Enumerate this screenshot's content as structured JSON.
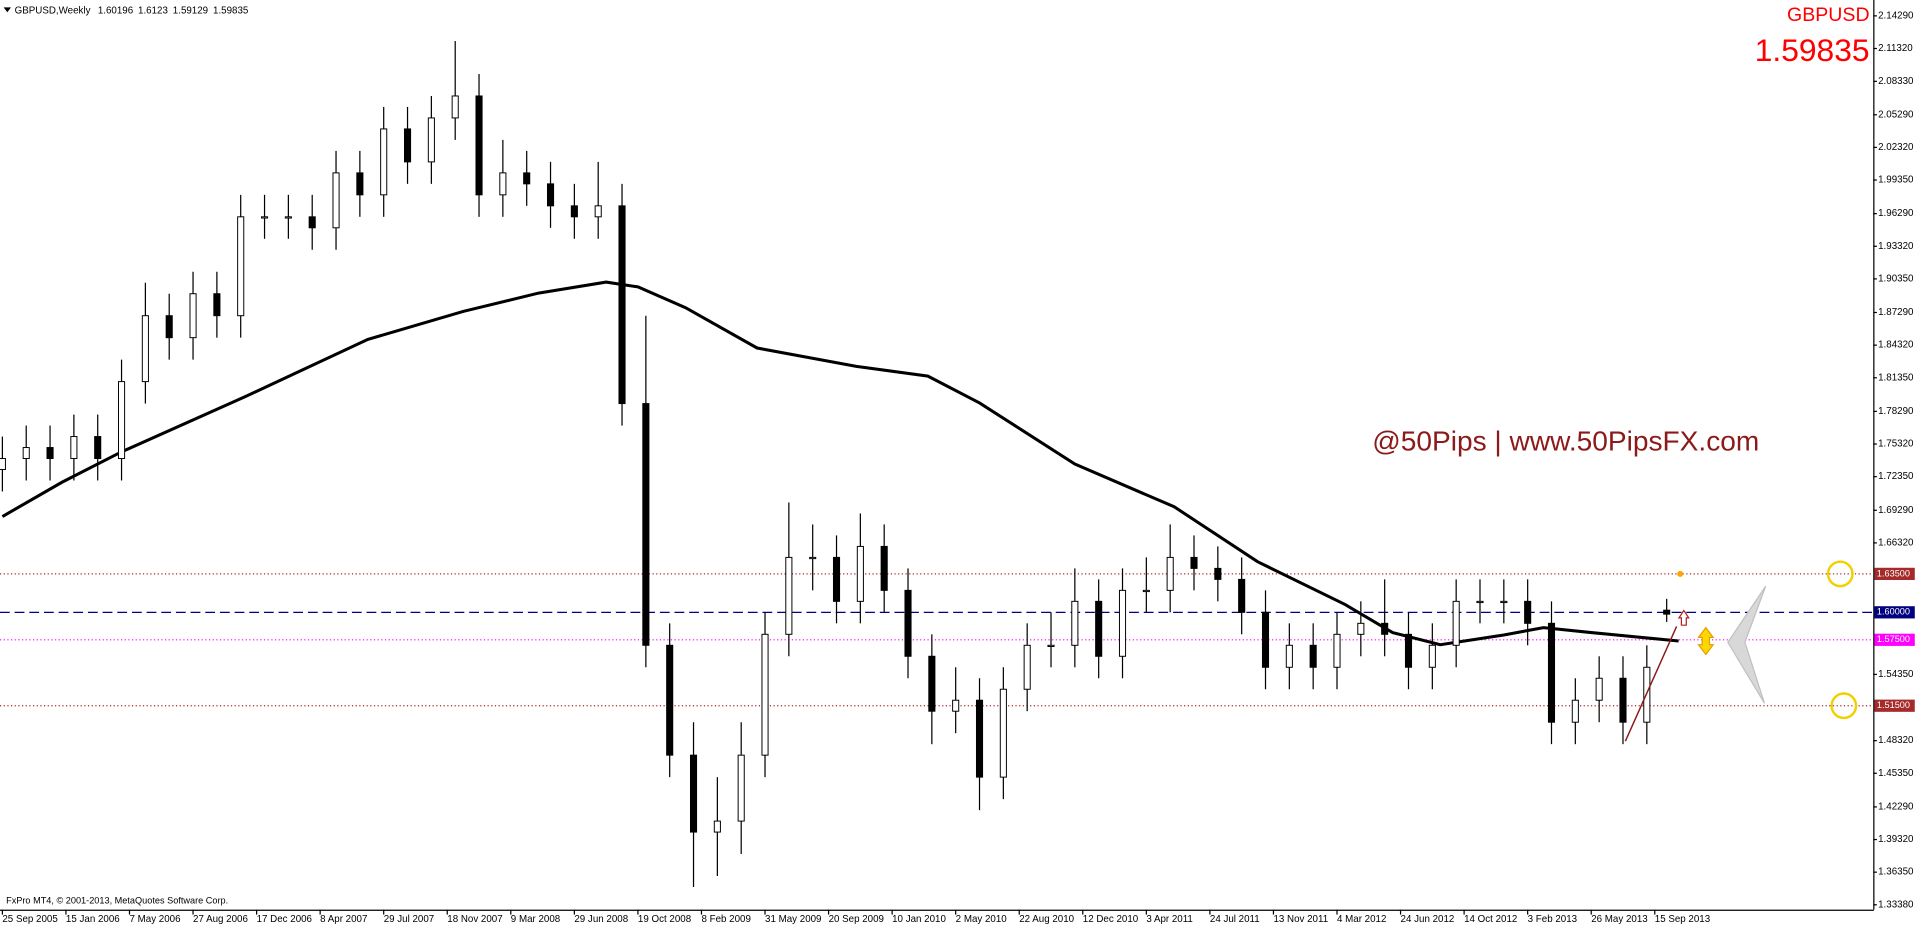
{
  "chart_data": {
    "type": "candlestick",
    "symbol_caption": "GBPUSD,Weekly",
    "symbol": "GBPUSD",
    "watermark": "@50Pips | www.50PipsFX.com",
    "copyright": "FxPro MT4, © 2001-2013, MetaQuotes Software Corp.",
    "xlim": [
      -0.6,
      471
    ],
    "ylim": [
      1.3338,
      2.1429
    ],
    "x": [
      0,
      6,
      12,
      18,
      24,
      30,
      36,
      42,
      48,
      54,
      60,
      66,
      72,
      78,
      84,
      90,
      96,
      102,
      108,
      114,
      120,
      126,
      132,
      138,
      144,
      150,
      156,
      162,
      168,
      174,
      180,
      186,
      192,
      198,
      204,
      210,
      216,
      222,
      228,
      234,
      240,
      246,
      252,
      258,
      264,
      270,
      276,
      282,
      288,
      294,
      300,
      306,
      312,
      318,
      324,
      330,
      336,
      342,
      348,
      354,
      360,
      366,
      372,
      378,
      384,
      390,
      396,
      402,
      408,
      414,
      419
    ],
    "open": [
      1.73,
      1.74,
      1.75,
      1.74,
      1.76,
      1.74,
      1.81,
      1.87,
      1.85,
      1.89,
      1.87,
      1.96,
      1.96,
      1.96,
      1.95,
      2.0,
      1.98,
      2.04,
      2.01,
      2.05,
      2.07,
      1.98,
      2.0,
      1.99,
      1.97,
      1.96,
      1.97,
      1.79,
      1.57,
      1.47,
      1.4,
      1.41,
      1.47,
      1.58,
      1.65,
      1.65,
      1.61,
      1.66,
      1.62,
      1.56,
      1.51,
      1.52,
      1.45,
      1.53,
      1.57,
      1.57,
      1.61,
      1.56,
      1.62,
      1.62,
      1.65,
      1.64,
      1.63,
      1.6,
      1.55,
      1.57,
      1.55,
      1.58,
      1.59,
      1.58,
      1.55,
      1.57,
      1.61,
      1.61,
      1.61,
      1.59,
      1.5,
      1.52,
      1.54,
      1.5,
      1.60196
    ],
    "high": [
      1.76,
      1.77,
      1.77,
      1.78,
      1.78,
      1.83,
      1.9,
      1.89,
      1.91,
      1.91,
      1.98,
      1.98,
      1.98,
      1.98,
      2.02,
      2.02,
      2.06,
      2.06,
      2.07,
      2.12,
      2.09,
      2.03,
      2.02,
      2.01,
      1.99,
      2.01,
      1.99,
      1.87,
      1.59,
      1.5,
      1.45,
      1.5,
      1.6,
      1.7,
      1.68,
      1.67,
      1.69,
      1.68,
      1.64,
      1.58,
      1.55,
      1.54,
      1.55,
      1.59,
      1.6,
      1.64,
      1.63,
      1.64,
      1.65,
      1.68,
      1.67,
      1.66,
      1.65,
      1.62,
      1.59,
      1.59,
      1.6,
      1.61,
      1.63,
      1.6,
      1.59,
      1.63,
      1.63,
      1.63,
      1.63,
      1.61,
      1.54,
      1.56,
      1.56,
      1.57,
      1.6123
    ],
    "low": [
      1.71,
      1.72,
      1.72,
      1.72,
      1.72,
      1.72,
      1.79,
      1.83,
      1.83,
      1.85,
      1.85,
      1.94,
      1.94,
      1.93,
      1.93,
      1.96,
      1.96,
      1.99,
      1.99,
      2.03,
      1.96,
      1.96,
      1.97,
      1.95,
      1.94,
      1.94,
      1.77,
      1.55,
      1.45,
      1.35,
      1.36,
      1.38,
      1.45,
      1.56,
      1.62,
      1.59,
      1.59,
      1.6,
      1.54,
      1.48,
      1.49,
      1.42,
      1.43,
      1.51,
      1.55,
      1.55,
      1.54,
      1.54,
      1.6,
      1.6,
      1.62,
      1.61,
      1.58,
      1.53,
      1.53,
      1.53,
      1.53,
      1.56,
      1.56,
      1.53,
      1.53,
      1.55,
      1.59,
      1.59,
      1.57,
      1.48,
      1.48,
      1.5,
      1.48,
      1.48,
      1.59129
    ],
    "close": [
      1.74,
      1.75,
      1.74,
      1.76,
      1.74,
      1.81,
      1.87,
      1.85,
      1.89,
      1.87,
      1.96,
      1.96,
      1.96,
      1.95,
      2.0,
      1.98,
      2.04,
      2.01,
      2.05,
      2.07,
      1.98,
      2.0,
      1.99,
      1.97,
      1.96,
      1.97,
      1.79,
      1.57,
      1.47,
      1.4,
      1.41,
      1.47,
      1.58,
      1.65,
      1.65,
      1.61,
      1.66,
      1.62,
      1.56,
      1.51,
      1.52,
      1.45,
      1.53,
      1.57,
      1.57,
      1.61,
      1.56,
      1.62,
      1.62,
      1.65,
      1.64,
      1.63,
      1.6,
      1.55,
      1.57,
      1.55,
      1.58,
      1.59,
      1.58,
      1.55,
      1.57,
      1.61,
      1.61,
      1.61,
      1.59,
      1.5,
      1.52,
      1.54,
      1.5,
      1.55,
      1.59835
    ],
    "ma": {
      "color": "#000000",
      "x": [
        0,
        15,
        30,
        61,
        92,
        116,
        135,
        152,
        160,
        172,
        190,
        215,
        233,
        246,
        270,
        295,
        316,
        338,
        350,
        362,
        378,
        388,
        400,
        422
      ],
      "values": [
        1.6872,
        1.7184,
        1.7461,
        1.7961,
        1.8484,
        1.8739,
        1.8906,
        1.9006,
        1.8962,
        1.8773,
        1.8406,
        1.8239,
        1.815,
        1.7906,
        1.735,
        1.6961,
        1.6461,
        1.6072,
        1.5816,
        1.5705,
        1.5794,
        1.5861,
        1.5816,
        1.5739
      ]
    },
    "trendline": {
      "color": "#8b1a1a",
      "x": [
        408.6,
        421.5
      ],
      "values": [
        1.4827,
        1.5872
      ]
    },
    "levels": [
      {
        "value": 1.635,
        "label": "1.63500",
        "color": "#a52a2a",
        "style": "dotted"
      },
      {
        "value": 1.6,
        "label": "1.60000",
        "color": "#000080",
        "style": "dashed"
      },
      {
        "value": 1.575,
        "label": "1.57500",
        "color": "#ff00ff",
        "style": "dotted"
      },
      {
        "value": 1.515,
        "label": "1.51500",
        "color": "#a52a2a",
        "style": "dotted"
      }
    ],
    "circles": [
      {
        "x": 462.7,
        "y": 1.635
      },
      {
        "x": 463.6,
        "y": 1.515
      }
    ],
    "yticks": [
      {
        "value": 2.1429,
        "label": "2.14290"
      },
      {
        "value": 2.1132,
        "label": "2.11320"
      },
      {
        "value": 2.0833,
        "label": "2.08330"
      },
      {
        "value": 2.0529,
        "label": "2.05290"
      },
      {
        "value": 2.0232,
        "label": "2.02320"
      },
      {
        "value": 1.9935,
        "label": "1.99350"
      },
      {
        "value": 1.9629,
        "label": "1.96290"
      },
      {
        "value": 1.9332,
        "label": "1.93320"
      },
      {
        "value": 1.9035,
        "label": "1.90350"
      },
      {
        "value": 1.8729,
        "label": "1.87290"
      },
      {
        "value": 1.8432,
        "label": "1.84320"
      },
      {
        "value": 1.8135,
        "label": "1.81350"
      },
      {
        "value": 1.7829,
        "label": "1.78290"
      },
      {
        "value": 1.7532,
        "label": "1.75320"
      },
      {
        "value": 1.7235,
        "label": "1.72350"
      },
      {
        "value": 1.6929,
        "label": "1.69290"
      },
      {
        "value": 1.6632,
        "label": "1.66320"
      },
      {
        "value": 1.5435,
        "label": "1.54350"
      },
      {
        "value": 1.4832,
        "label": "1.48320"
      },
      {
        "value": 1.4535,
        "label": "1.45350"
      },
      {
        "value": 1.4229,
        "label": "1.42290"
      },
      {
        "value": 1.3932,
        "label": "1.39320"
      },
      {
        "value": 1.3635,
        "label": "1.36350"
      },
      {
        "value": 1.3338,
        "label": "1.33380"
      }
    ],
    "xticks": [
      {
        "value": 0,
        "label": "25 Sep 2005"
      },
      {
        "value": 16,
        "label": "15 Jan 2006"
      },
      {
        "value": 32,
        "label": "7 May 2006"
      },
      {
        "value": 48,
        "label": "27 Aug 2006"
      },
      {
        "value": 64,
        "label": "17 Dec 2006"
      },
      {
        "value": 80,
        "label": "8 Apr 2007"
      },
      {
        "value": 96,
        "label": "29 Jul 2007"
      },
      {
        "value": 112,
        "label": "18 Nov 2007"
      },
      {
        "value": 128,
        "label": "9 Mar 2008"
      },
      {
        "value": 144,
        "label": "29 Jun 2008"
      },
      {
        "value": 160,
        "label": "19 Oct 2008"
      },
      {
        "value": 176,
        "label": "8 Feb 2009"
      },
      {
        "value": 192,
        "label": "31 May 2009"
      },
      {
        "value": 208,
        "label": "20 Sep 2009"
      },
      {
        "value": 224,
        "label": "10 Jan 2010"
      },
      {
        "value": 240,
        "label": "2 May 2010"
      },
      {
        "value": 256,
        "label": "22 Aug 2010"
      },
      {
        "value": 272,
        "label": "12 Dec 2010"
      },
      {
        "value": 288,
        "label": "3 Apr 2011"
      },
      {
        "value": 304,
        "label": "24 Jul 2011"
      },
      {
        "value": 320,
        "label": "13 Nov 2011"
      },
      {
        "value": 336,
        "label": "4 Mar 2012"
      },
      {
        "value": 352,
        "label": "24 Jun 2012"
      },
      {
        "value": 368,
        "label": "14 Oct 2012"
      },
      {
        "value": 384,
        "label": "3 Feb 2013"
      },
      {
        "value": 400,
        "label": "26 May 2013"
      },
      {
        "value": 416,
        "label": "15 Sep 2013"
      }
    ]
  }
}
